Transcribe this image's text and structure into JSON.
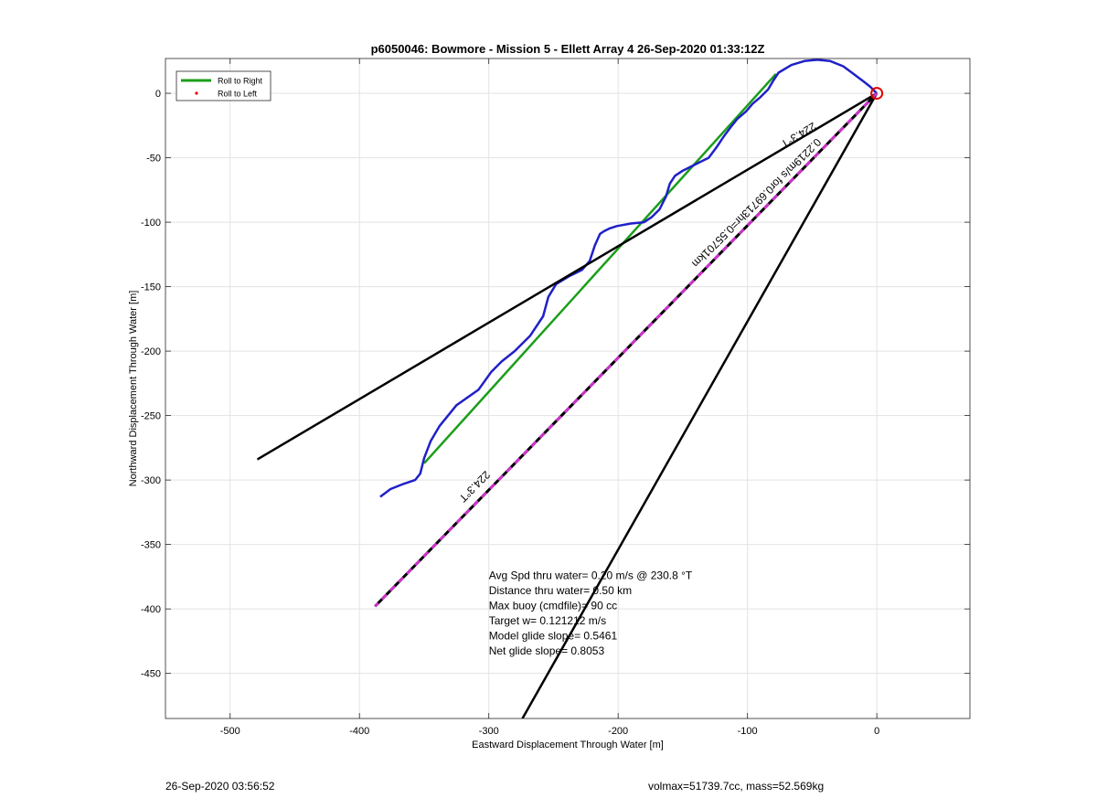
{
  "chart_data": {
    "type": "line",
    "title": "p6050046: Bowmore - Mission 5 - Ellett Array 4 26-Sep-2020 01:33:12Z",
    "xlabel": "Eastward Displacement Through Water [m]",
    "ylabel": "Northward Displacement Through Water [m]",
    "xlim": [
      -550,
      72
    ],
    "ylim": [
      -485,
      27
    ],
    "xticks": [
      -500,
      -400,
      -300,
      -200,
      -100,
      0
    ],
    "yticks": [
      0,
      -50,
      -100,
      -150,
      -200,
      -250,
      -300,
      -350,
      -400,
      -450
    ],
    "grid": true,
    "legend": {
      "placement": "top-left",
      "entries": [
        {
          "label": "Roll to Right",
          "color": "#1a9e1a",
          "marker": "line"
        },
        {
          "label": "Roll to Left",
          "color": "#e00000",
          "marker": "dot"
        }
      ]
    },
    "series": [
      {
        "name": "Roll to Right",
        "color": "#1a9e1a",
        "x": [
          -78,
          -350
        ],
        "y": [
          15,
          -287
        ]
      },
      {
        "color": "#2020c8",
        "x": [
          -384,
          -376,
          -366,
          -357,
          -353,
          -350,
          -345,
          -338,
          -325,
          -308,
          -298,
          -290,
          -280,
          -268,
          -258,
          -254,
          -248,
          -238,
          -228,
          -222,
          -218,
          -214,
          -211,
          -207,
          -201,
          -190,
          -180,
          -174,
          -168,
          -163,
          -160,
          -156,
          -150,
          -140,
          -130,
          -124,
          -118,
          -112,
          -108,
          -101,
          -96,
          -90,
          -84,
          -80,
          -76,
          -66,
          -56,
          -46,
          -36,
          -26,
          -18,
          -10,
          -5,
          -1,
          0
        ],
        "y": [
          -313,
          -307,
          -303,
          -300,
          -295,
          -283,
          -270,
          -258,
          -242,
          -230,
          -216,
          -208,
          -200,
          -188,
          -173,
          -158,
          -148,
          -142,
          -137,
          -130,
          -118,
          -109,
          -107,
          -105,
          -103,
          -101,
          -100,
          -96,
          -90,
          -80,
          -70,
          -64,
          -60,
          -55,
          -50,
          -42,
          -33,
          -25,
          -20,
          -14,
          -8,
          -3,
          3,
          10,
          16,
          22,
          25,
          26,
          25,
          21,
          15,
          9,
          5,
          1,
          0
        ]
      },
      {
        "color": "#000000",
        "x": [
          0,
          -479
        ],
        "y": [
          0,
          -284
        ]
      },
      {
        "color": "#000000",
        "x": [
          0,
          -274
        ],
        "y": [
          0,
          -485
        ]
      },
      {
        "color": "#cc33cc",
        "dashed": true,
        "x": [
          0,
          -388
        ],
        "y": [
          0,
          -398
        ]
      }
    ],
    "start_marker": {
      "x": 0,
      "y": 0,
      "color": "#e00000"
    },
    "annotations": [
      {
        "text": "224.3°T",
        "x": -62,
        "y": -30,
        "rotate": -31
      },
      {
        "text": "0.2219m/s for0.69713hr=0.55701km",
        "x": -95,
        "y": -83,
        "rotate": -45
      },
      {
        "text": "224.3°T",
        "x": -313,
        "y": -303,
        "rotate": -45
      }
    ],
    "stats_text": {
      "x": -300,
      "y": -377,
      "lines": [
        "Avg Spd thru water=  0.20 m/s @ 230.8 °T",
        "Distance thru water=  0.50 km",
        "Max buoy (cmdfile)= 90 cc",
        "Target w= 0.121212 m/s",
        "Model glide slope= 0.5461",
        "Net glide slope= 0.8053"
      ]
    }
  },
  "footer": {
    "timestamp": "26-Sep-2020 03:56:52",
    "volmax_mass": "volmax=51739.7cc, mass=52.569kg"
  }
}
